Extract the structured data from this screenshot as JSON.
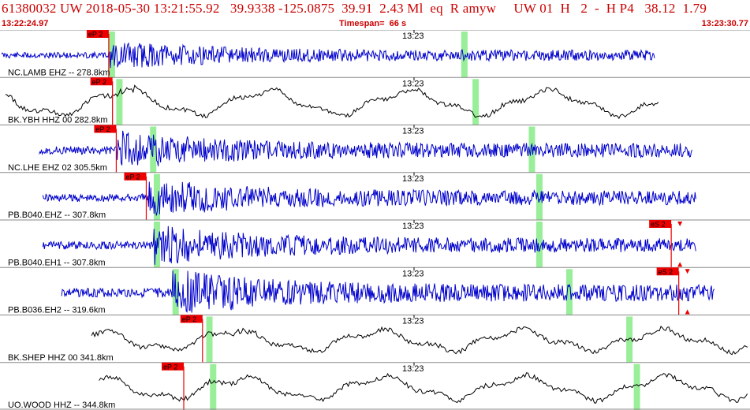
{
  "header": {
    "title": "61380032 UW 2018-05-30 13:21:55.92   39.9338 -125.0875  39.91  2.43 Ml  eq  R amyw     UW 01  H   2  -  H P4   38.12  1.79",
    "start_time": "13:22:24.97",
    "timespan": "Timespan=  66 s",
    "end_time": "13:23:30.77"
  },
  "colors": {
    "title": "#cc0000",
    "trace_blue": "#0000cc",
    "trace_black": "#000000",
    "pick_red": "#ee0000",
    "window_green": "#99ee99",
    "grid_gray": "#888888"
  },
  "tick_label": "13:23",
  "traces": [
    {
      "label": "NC.LAMB EHZ -- 278.8km",
      "color": "blue",
      "pick": "eP 2",
      "pick_at": 0.145,
      "win_a": 0.145,
      "win_b": 0.615,
      "s_pick": "",
      "s_at": 0,
      "amp": 0.45,
      "start": 0.0,
      "end": 0.875,
      "seed": 11
    },
    {
      "label": "BK.YBH HHZ 00 282.8km",
      "color": "black",
      "pick": "eP 2",
      "pick_at": 0.15,
      "win_a": 0.155,
      "win_b": 0.63,
      "s_pick": "",
      "s_at": 0,
      "amp": 0.55,
      "start": 0.005,
      "end": 0.88,
      "seed": 23
    },
    {
      "label": "NC.LHE EHZ 02 305.5km",
      "color": "blue",
      "pick": "eP 2",
      "pick_at": 0.155,
      "win_a": 0.2,
      "win_b": 0.705,
      "s_pick": "",
      "s_at": 0,
      "amp": 0.6,
      "start": 0.05,
      "end": 0.925,
      "seed": 37
    },
    {
      "label": "PB.B040.EHZ -- 307.8km",
      "color": "blue",
      "pick": "eP 2",
      "pick_at": 0.195,
      "win_a": 0.205,
      "win_b": 0.715,
      "s_pick": "",
      "s_at": 0,
      "amp": 0.6,
      "start": 0.055,
      "end": 0.93,
      "seed": 41
    },
    {
      "label": "PB.B040.EH1 -- 307.8km",
      "color": "blue",
      "pick": "",
      "pick_at": 0,
      "win_a": 0.205,
      "win_b": 0.715,
      "s_pick": "eS 2",
      "s_at": 0.895,
      "amp": 0.6,
      "start": 0.055,
      "end": 0.93,
      "seed": 53
    },
    {
      "label": "PB.B036.EH2 -- 319.6km",
      "color": "blue",
      "pick": "",
      "pick_at": 0,
      "win_a": 0.23,
      "win_b": 0.755,
      "s_pick": "eS 2",
      "s_at": 0.905,
      "amp": 0.7,
      "start": 0.08,
      "end": 0.955,
      "seed": 67
    },
    {
      "label": "BK.SHEP HHZ 00 341.8km",
      "color": "black",
      "pick": "eP 2",
      "pick_at": 0.27,
      "win_a": 0.275,
      "win_b": 0.835,
      "s_pick": "",
      "s_at": 0,
      "amp": 0.45,
      "start": 0.12,
      "end": 1.0,
      "seed": 79
    },
    {
      "label": "UO.WOOD HHZ -- 344.8km",
      "color": "black",
      "pick": "eP 2",
      "pick_at": 0.245,
      "win_a": 0.28,
      "win_b": 0.845,
      "s_pick": "",
      "s_at": 0,
      "amp": 0.5,
      "start": 0.13,
      "end": 1.0,
      "seed": 97
    }
  ]
}
